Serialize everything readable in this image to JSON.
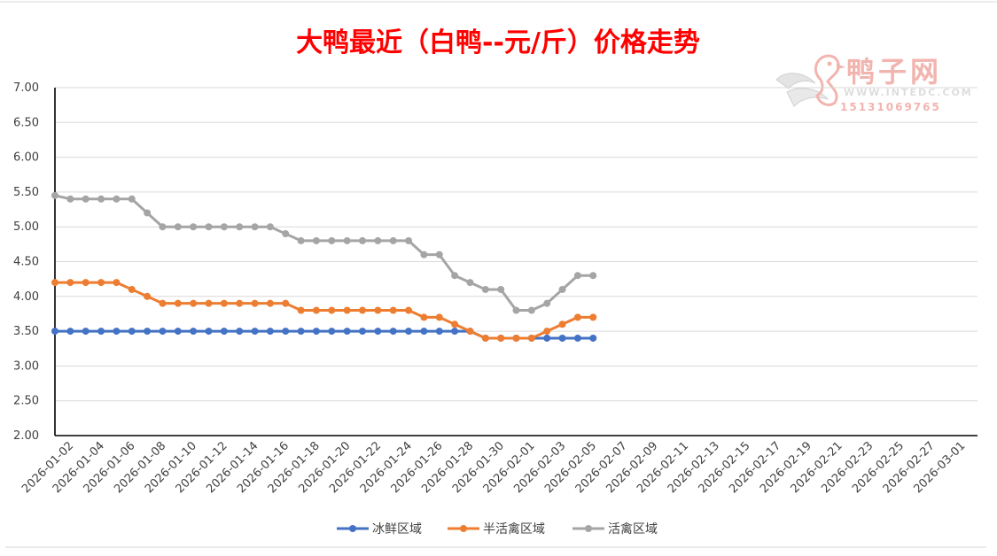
{
  "chart_data": {
    "type": "line",
    "title": "大鸭最近（白鸭--元/斤）价格走势",
    "ylim": [
      2.0,
      7.0
    ],
    "y_ticks": [
      "2.00",
      "2.50",
      "3.00",
      "3.50",
      "4.00",
      "4.50",
      "5.00",
      "5.50",
      "6.00",
      "6.50",
      "7.00"
    ],
    "x_start": "2026-01-01",
    "x_end": "2026-03-02",
    "x_tick_labels": [
      "2026-01-02",
      "2026-01-04",
      "2026-01-06",
      "2026-01-08",
      "2026-01-10",
      "2026-01-12",
      "2026-01-14",
      "2026-01-16",
      "2026-01-18",
      "2026-01-20",
      "2026-01-22",
      "2026-01-24",
      "2026-01-26",
      "2026-01-28",
      "2026-01-30",
      "2026-02-01",
      "2026-02-03",
      "2026-02-05",
      "2026-02-07",
      "2026-02-09",
      "2026-02-11",
      "2026-02-13",
      "2026-02-15",
      "2026-02-17",
      "2026-02-19",
      "2026-02-21",
      "2026-02-23",
      "2026-02-25",
      "2026-02-27",
      "2026-03-01"
    ],
    "grid": true,
    "legend_position": "bottom",
    "x": [
      "2026-01-01",
      "2026-01-02",
      "2026-01-03",
      "2026-01-04",
      "2026-01-05",
      "2026-01-06",
      "2026-01-07",
      "2026-01-08",
      "2026-01-09",
      "2026-01-10",
      "2026-01-11",
      "2026-01-12",
      "2026-01-13",
      "2026-01-14",
      "2026-01-15",
      "2026-01-16",
      "2026-01-17",
      "2026-01-18",
      "2026-01-19",
      "2026-01-20",
      "2026-01-21",
      "2026-01-22",
      "2026-01-23",
      "2026-01-24",
      "2026-01-25",
      "2026-01-26",
      "2026-01-27",
      "2026-01-28",
      "2026-01-29",
      "2026-01-30",
      "2026-01-31",
      "2026-02-01",
      "2026-02-02",
      "2026-02-03",
      "2026-02-04",
      "2026-02-05"
    ],
    "series": [
      {
        "name": "冰鲜区域",
        "color": "#4472c4",
        "values": [
          3.5,
          3.5,
          3.5,
          3.5,
          3.5,
          3.5,
          3.5,
          3.5,
          3.5,
          3.5,
          3.5,
          3.5,
          3.5,
          3.5,
          3.5,
          3.5,
          3.5,
          3.5,
          3.5,
          3.5,
          3.5,
          3.5,
          3.5,
          3.5,
          3.5,
          3.5,
          3.5,
          3.5,
          3.4,
          3.4,
          3.4,
          3.4,
          3.4,
          3.4,
          3.4,
          3.4
        ]
      },
      {
        "name": "半活禽区域",
        "color": "#ed7d31",
        "values": [
          4.2,
          4.2,
          4.2,
          4.2,
          4.2,
          4.1,
          4.0,
          3.9,
          3.9,
          3.9,
          3.9,
          3.9,
          3.9,
          3.9,
          3.9,
          3.9,
          3.8,
          3.8,
          3.8,
          3.8,
          3.8,
          3.8,
          3.8,
          3.8,
          3.7,
          3.7,
          3.6,
          3.5,
          3.4,
          3.4,
          3.4,
          3.4,
          3.5,
          3.6,
          3.7,
          3.7
        ]
      },
      {
        "name": "活禽区域",
        "color": "#a5a5a5",
        "values": [
          5.45,
          5.4,
          5.4,
          5.4,
          5.4,
          5.4,
          5.2,
          5.0,
          5.0,
          5.0,
          5.0,
          5.0,
          5.0,
          5.0,
          5.0,
          4.9,
          4.8,
          4.8,
          4.8,
          4.8,
          4.8,
          4.8,
          4.8,
          4.8,
          4.6,
          4.6,
          4.3,
          4.2,
          4.1,
          4.1,
          3.8,
          3.8,
          3.9,
          4.1,
          4.3,
          4.3
        ]
      }
    ]
  },
  "watermark": {
    "brand_text": "鸭子网",
    "url_text": "WWW.INTEDC.COM",
    "phone_text": "15131069765",
    "color": "#f0a8a0"
  }
}
